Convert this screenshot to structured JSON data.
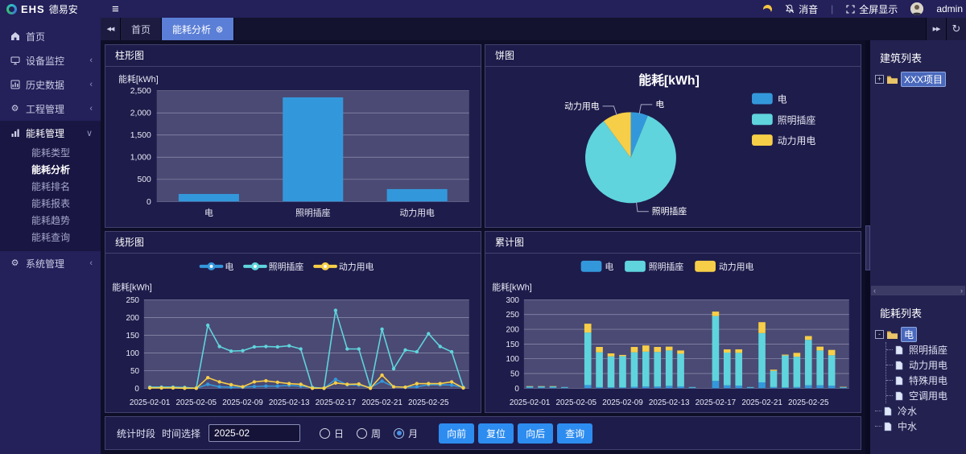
{
  "topbar": {
    "logo_text": "EHS",
    "logo_suffix": "德易安",
    "mute_label": "消音",
    "divider": "|",
    "fullscreen_label": "全屏显示",
    "user_name": "admin"
  },
  "sidebar": {
    "items": [
      {
        "label": "首页",
        "icon": "home-icon",
        "arrow": ""
      },
      {
        "label": "设备监控",
        "icon": "device-icon",
        "arrow": "‹"
      },
      {
        "label": "历史数据",
        "icon": "history-icon",
        "arrow": "‹"
      },
      {
        "label": "工程管理",
        "icon": "gears-icon",
        "arrow": "‹"
      },
      {
        "label": "能耗管理",
        "icon": "barchart-icon",
        "arrow": "∨",
        "expanded": true,
        "children": [
          {
            "label": "能耗类型"
          },
          {
            "label": "能耗分析",
            "active": true
          },
          {
            "label": "能耗排名"
          },
          {
            "label": "能耗报表"
          },
          {
            "label": "能耗趋势"
          },
          {
            "label": "能耗查询"
          }
        ]
      },
      {
        "label": "系统管理",
        "icon": "gear-icon",
        "arrow": "‹"
      }
    ]
  },
  "tabs": [
    {
      "label": "首页"
    },
    {
      "label": "能耗分析",
      "active": true,
      "close_glyph": "⊗"
    }
  ],
  "panels": {
    "bar": "柱形图",
    "pie": "饼图",
    "line": "线形图",
    "stack": "累计图"
  },
  "chart_data": [
    {
      "type": "bar",
      "title": "柱形图",
      "ylabel": "能耗[kWh]",
      "categories": [
        "电",
        "照明插座",
        "动力用电"
      ],
      "values": [
        170,
        2350,
        280
      ],
      "ylim": [
        0,
        2500
      ],
      "ytick": 500,
      "color": "#3398db"
    },
    {
      "type": "pie",
      "title": "能耗[kWh]",
      "legend_position": "right",
      "series": [
        {
          "name": "电",
          "value": 173,
          "color": "#3398db"
        },
        {
          "name": "照明插座",
          "value": 2357,
          "color": "#5fd4dc"
        },
        {
          "name": "动力用电",
          "value": 285,
          "color": "#f7ce47"
        }
      ]
    },
    {
      "type": "line",
      "title": "线形图",
      "ylabel": "能耗[kWh]",
      "ylim": [
        0,
        250
      ],
      "ytick": 50,
      "days": 28,
      "tick_indices": [
        0,
        4,
        8,
        12,
        16,
        20,
        24
      ],
      "x_tick_labels": [
        "2025-02-01",
        "2025-02-05",
        "2025-02-09",
        "2025-02-13",
        "2025-02-17",
        "2025-02-21",
        "2025-02-25"
      ],
      "legend_position": "top",
      "series": [
        {
          "name": "电",
          "color": "#3398db",
          "values": [
            3,
            3,
            3,
            2,
            0,
            11,
            4,
            3,
            3,
            5,
            6,
            6,
            8,
            6,
            2,
            0,
            25,
            10,
            9,
            2,
            20,
            4,
            3,
            4,
            10,
            10,
            9,
            2
          ]
        },
        {
          "name": "照明插座",
          "color": "#5fd4dc",
          "values": [
            3,
            3,
            3,
            2,
            0,
            178,
            118,
            105,
            106,
            117,
            118,
            117,
            120,
            111,
            2,
            0,
            220,
            111,
            111,
            2,
            167,
            55,
            108,
            103,
            154,
            118,
            103,
            2
          ]
        },
        {
          "name": "动力用电",
          "color": "#f7ce47",
          "values": [
            1,
            1,
            1,
            0,
            0,
            30,
            18,
            10,
            4,
            18,
            21,
            17,
            13,
            11,
            0,
            0,
            15,
            11,
            12,
            0,
            37,
            4,
            3,
            13,
            13,
            13,
            18,
            1
          ]
        }
      ]
    },
    {
      "type": "stacked_bar",
      "title": "累计图",
      "ylabel": "能耗[kWh]",
      "ylim": [
        0,
        300
      ],
      "ytick": 50,
      "days": 28,
      "tick_indices": [
        0,
        4,
        8,
        12,
        16,
        20,
        24
      ],
      "x_tick_labels": [
        "2025-02-01",
        "2025-02-05",
        "2025-02-09",
        "2025-02-13",
        "2025-02-17",
        "2025-02-21",
        "2025-02-25"
      ],
      "legend_position": "top",
      "series": [
        {
          "name": "电",
          "color": "#3398db",
          "values": [
            3,
            3,
            3,
            2,
            0,
            11,
            4,
            3,
            3,
            5,
            6,
            6,
            8,
            6,
            2,
            0,
            25,
            10,
            9,
            2,
            20,
            4,
            3,
            4,
            10,
            10,
            9,
            2
          ]
        },
        {
          "name": "照明插座",
          "color": "#5fd4dc",
          "values": [
            3,
            3,
            3,
            2,
            0,
            178,
            118,
            105,
            106,
            117,
            118,
            117,
            120,
            111,
            2,
            0,
            220,
            111,
            111,
            2,
            167,
            55,
            108,
            103,
            154,
            118,
            103,
            2
          ]
        },
        {
          "name": "动力用电",
          "color": "#f7ce47",
          "values": [
            1,
            1,
            1,
            0,
            0,
            30,
            18,
            10,
            4,
            18,
            21,
            17,
            13,
            11,
            0,
            0,
            15,
            11,
            12,
            0,
            37,
            4,
            3,
            13,
            13,
            13,
            18,
            1
          ]
        }
      ]
    }
  ],
  "bottom_bar": {
    "section_label": "统计时段",
    "time_label": "时间选择",
    "date_value": "2025-02",
    "radios": [
      {
        "label": "日"
      },
      {
        "label": "周"
      },
      {
        "label": "月",
        "selected": true
      }
    ],
    "buttons": [
      "向前",
      "复位",
      "向后",
      "查询"
    ]
  },
  "right_panel": {
    "building_title": "建筑列表",
    "building_tree": [
      {
        "label": "XXX项目",
        "icon": "folder-icon",
        "expander": "+",
        "selected": true
      }
    ],
    "scrollbar": {
      "left_glyph": "‹",
      "right_glyph": "›"
    },
    "energy_title": "能耗列表",
    "energy_tree": [
      {
        "label": "电",
        "icon": "folder-icon",
        "expander": "-",
        "selected": true,
        "children": [
          {
            "label": "照明插座",
            "icon": "file-icon"
          },
          {
            "label": "动力用电",
            "icon": "file-icon"
          },
          {
            "label": "特殊用电",
            "icon": "file-icon"
          },
          {
            "label": "空调用电",
            "icon": "file-icon"
          }
        ]
      },
      {
        "label": "冷水",
        "icon": "file-icon"
      },
      {
        "label": "中水",
        "icon": "file-icon"
      }
    ]
  },
  "colors": {
    "accent_tab": "#5b7fd6",
    "elec_blue": "#3398db",
    "light_cyan": "#5fd4dc",
    "power_yellow": "#f7ce47",
    "button_blue": "#2d8cf0",
    "plot_bg": "#4b4a74",
    "panel_bg": "#1e1c4b",
    "sidebar_bg": "#23205a"
  }
}
